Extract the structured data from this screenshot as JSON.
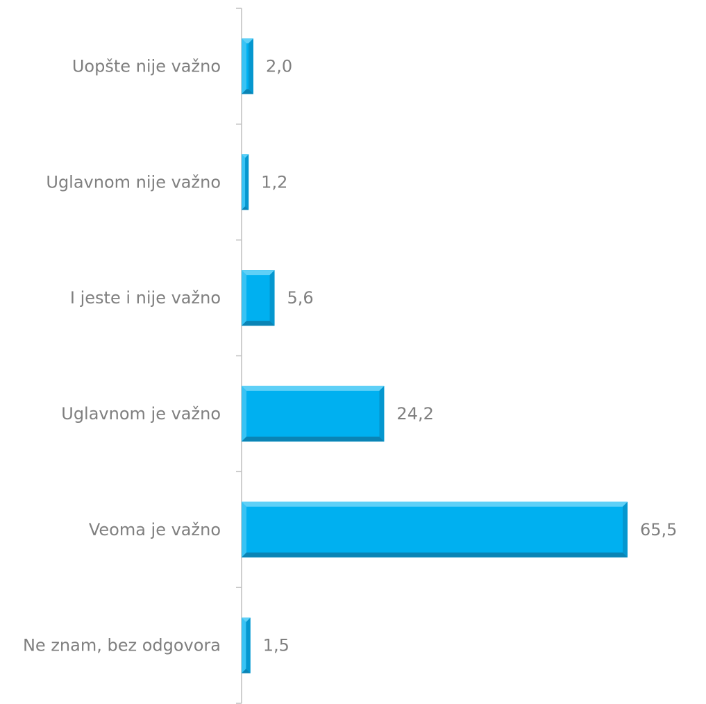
{
  "colors": {
    "bar": "#00b0f0",
    "bar_light": "#5fd0f7",
    "bar_dark": "#0a84b5",
    "axis": "#bfbfbf",
    "text": "#7f7f7f"
  },
  "chart_data": {
    "type": "bar",
    "orientation": "horizontal",
    "title": "",
    "xlabel": "",
    "ylabel": "",
    "categories": [
      "Uopšte nije važno",
      "Uglavnom nije važno",
      "I jeste i nije važno",
      "Uglavnom je važno",
      "Veoma je važno",
      "Ne znam, bez odgovora"
    ],
    "values": [
      2.0,
      1.2,
      5.6,
      24.2,
      65.5,
      1.5
    ],
    "value_labels": [
      "2,0",
      "1,2",
      "5,6",
      "24,2",
      "65,5",
      "1,5"
    ],
    "xlim": [
      0,
      65.5
    ],
    "grid": false,
    "legend": "none"
  }
}
